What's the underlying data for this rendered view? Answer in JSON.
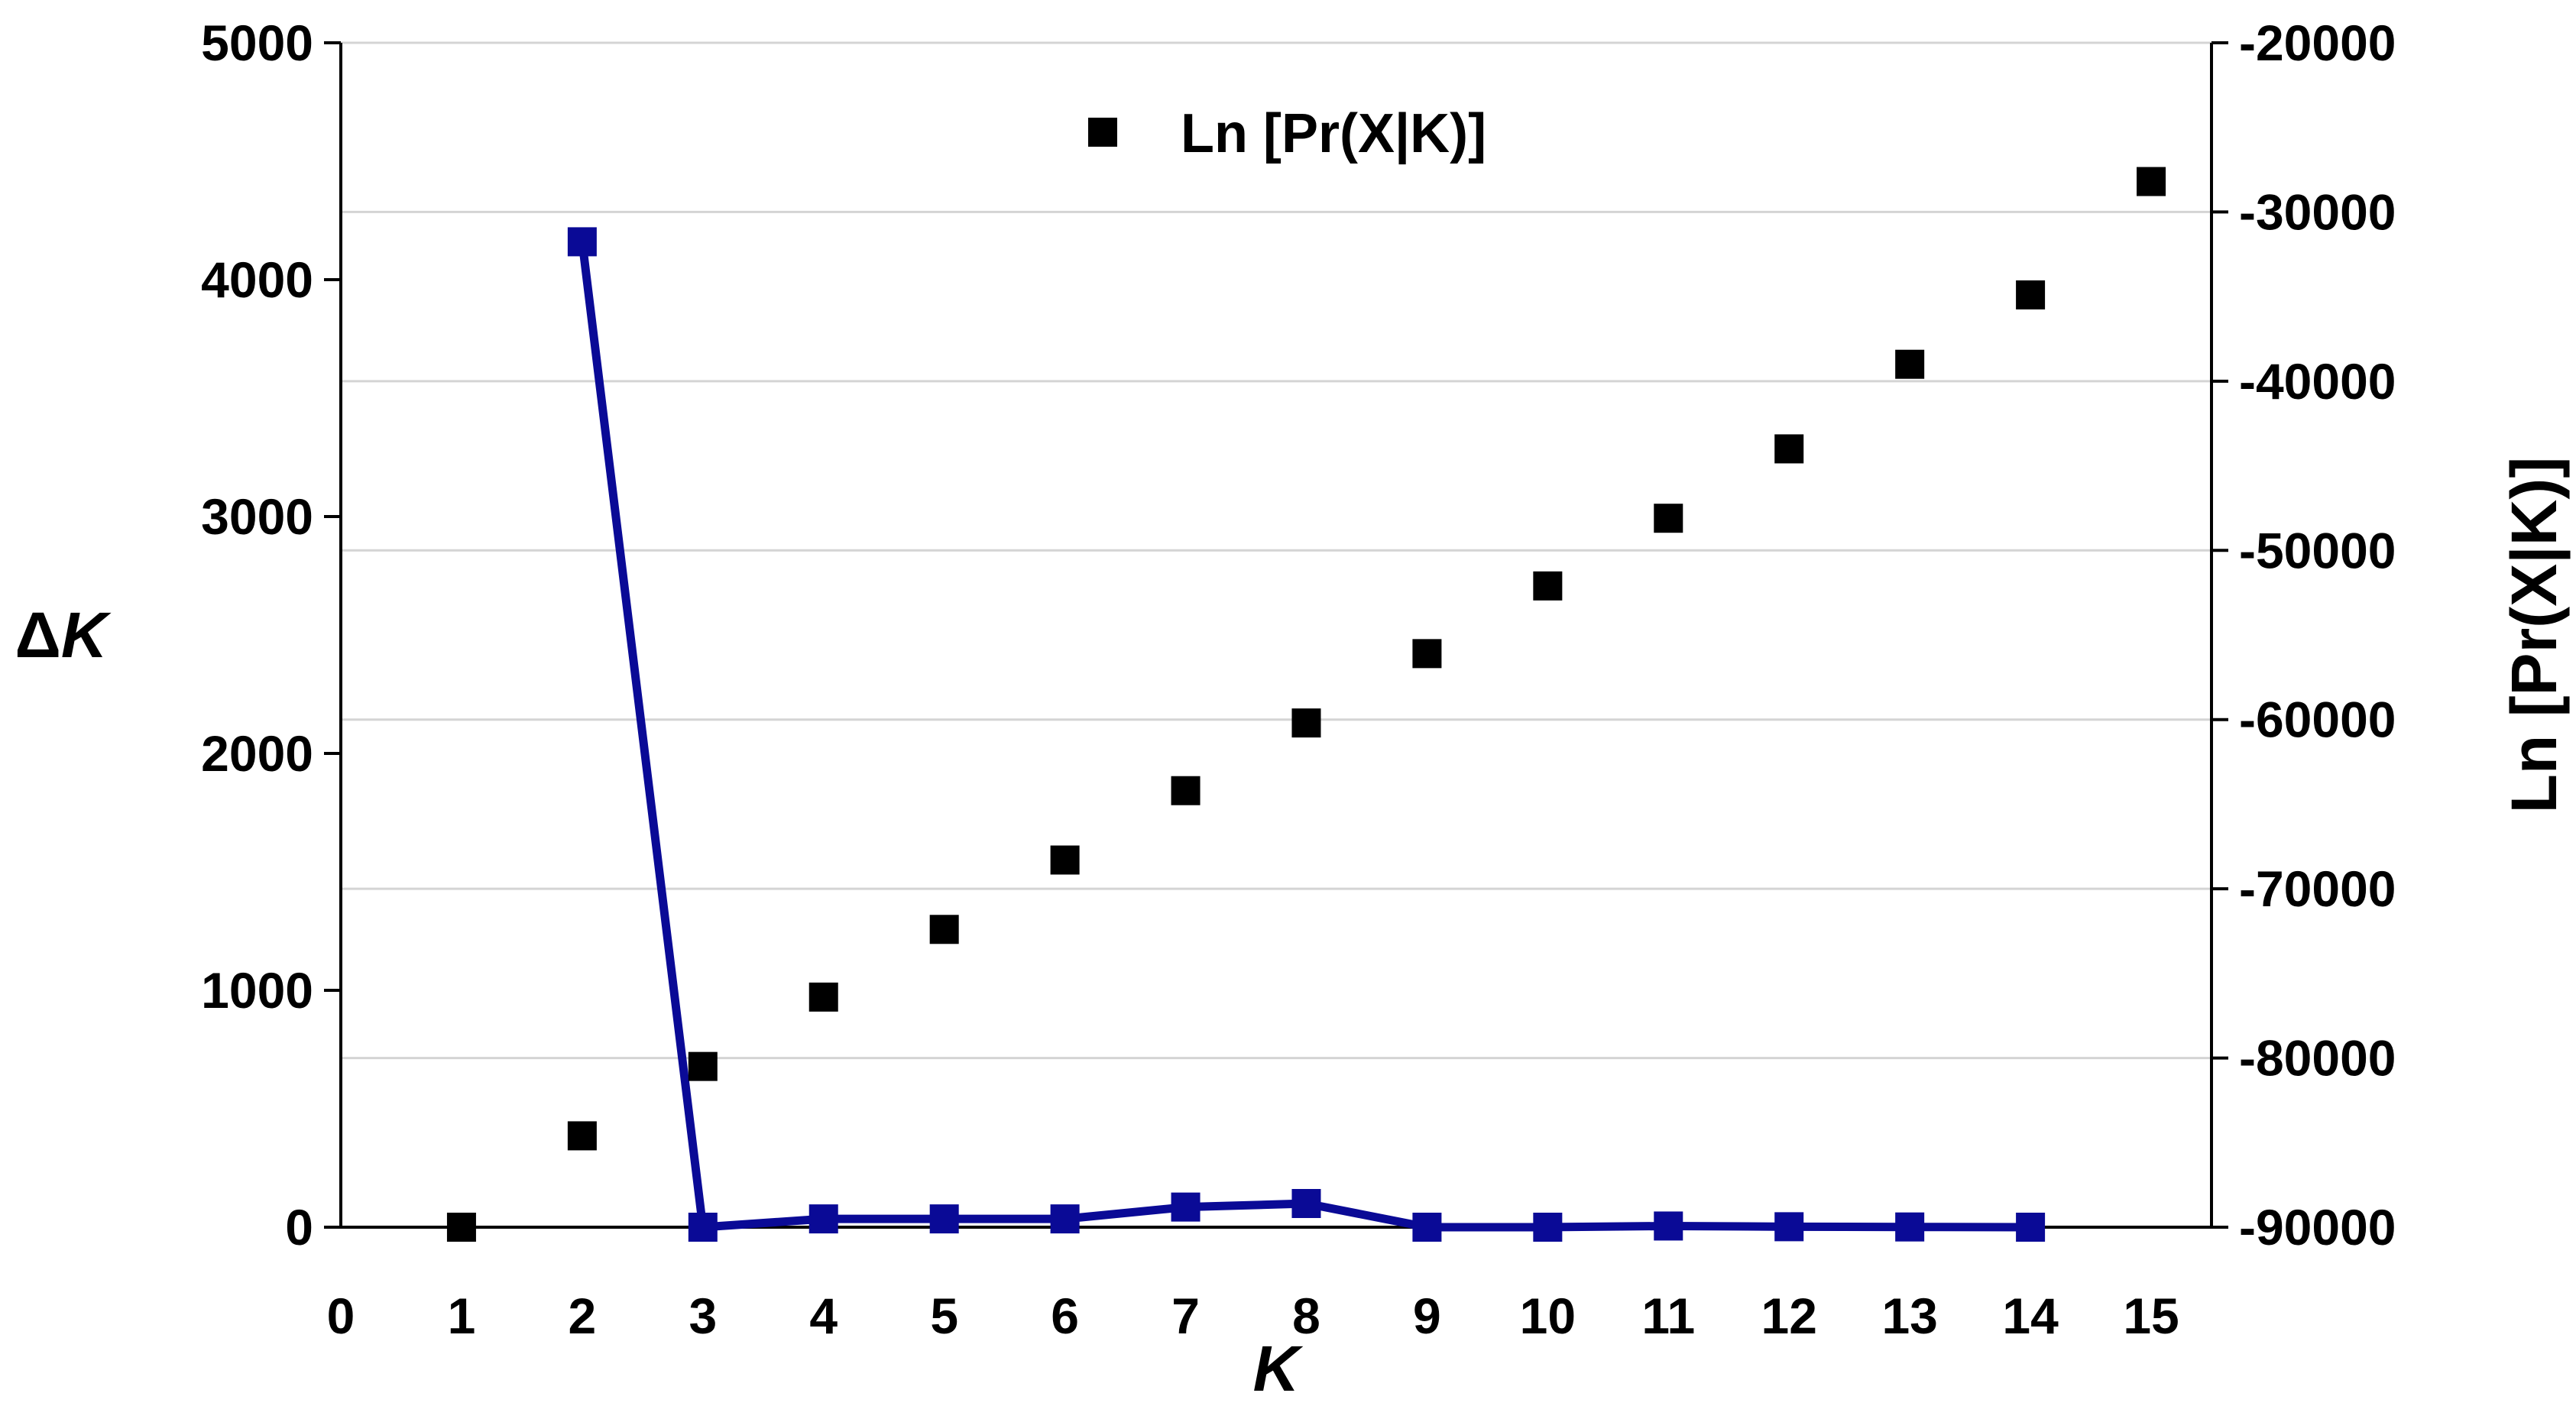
{
  "chart_data": {
    "type": "line",
    "x_axis": {
      "label_prefix": "",
      "label_italic": "K",
      "range": [
        0,
        15.5
      ],
      "ticks": [
        0,
        1,
        2,
        3,
        4,
        5,
        6,
        7,
        8,
        9,
        10,
        11,
        12,
        13,
        14,
        15
      ]
    },
    "y_left": {
      "label_prefix": "Δ",
      "label_italic": "K",
      "range": [
        0,
        5000
      ],
      "ticks": [
        0,
        1000,
        2000,
        3000,
        4000,
        5000
      ]
    },
    "y_right": {
      "label": "Ln [Pr(X|K)]",
      "range": [
        -90000,
        -20000
      ],
      "ticks": [
        -90000,
        -80000,
        -70000,
        -60000,
        -50000,
        -40000,
        -30000,
        -20000
      ]
    },
    "grid": true,
    "series": [
      {
        "name": "Ln [Pr(X|K)]",
        "axis": "right",
        "style": "markers",
        "color": "#000000",
        "points": [
          {
            "x": 1,
            "y": -90000
          },
          {
            "x": 2,
            "y": -84600
          },
          {
            "x": 3,
            "y": -80500
          },
          {
            "x": 4,
            "y": -76400
          },
          {
            "x": 5,
            "y": -72400
          },
          {
            "x": 6,
            "y": -68300
          },
          {
            "x": 7,
            "y": -64200
          },
          {
            "x": 8,
            "y": -60200
          },
          {
            "x": 9,
            "y": -56100
          },
          {
            "x": 10,
            "y": -52100
          },
          {
            "x": 11,
            "y": -48100
          },
          {
            "x": 12,
            "y": -44000
          },
          {
            "x": 13,
            "y": -39000
          },
          {
            "x": 14,
            "y": -34900
          },
          {
            "x": 15,
            "y": -28200
          }
        ]
      },
      {
        "axis": "left",
        "style": "line-markers",
        "color": "#0a0a96",
        "points": [
          {
            "x": 2,
            "y": 4160
          },
          {
            "x": 3,
            "y": 0
          },
          {
            "x": 4,
            "y": 35
          },
          {
            "x": 5,
            "y": 35
          },
          {
            "x": 6,
            "y": 35
          },
          {
            "x": 7,
            "y": 85
          },
          {
            "x": 8,
            "y": 100
          },
          {
            "x": 9,
            "y": 0
          },
          {
            "x": 10,
            "y": 0
          },
          {
            "x": 11,
            "y": 5
          },
          {
            "x": 12,
            "y": 2
          },
          {
            "x": 13,
            "y": 1
          },
          {
            "x": 14,
            "y": 0
          }
        ]
      }
    ],
    "legend": {
      "position": "top-center",
      "entries": [
        "Ln [Pr(X|K)]"
      ]
    }
  }
}
